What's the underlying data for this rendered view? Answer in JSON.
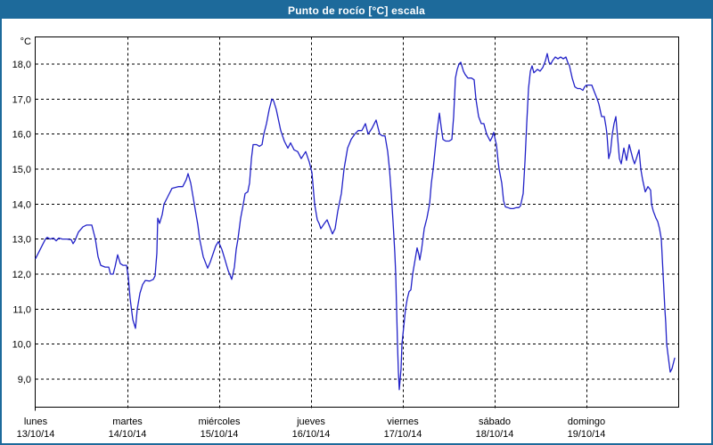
{
  "window": {
    "title": "Punto de rocío [°C] escala"
  },
  "colors": {
    "title_bar": "#1d6a9b",
    "frame": "#1d6a9b",
    "title_text": "#ffffff",
    "line": "#2222c8",
    "grid": "#000000",
    "plot_border": "#000000",
    "plot_bg": "#ffffff",
    "label_text": "#000000"
  },
  "chart_data": {
    "type": "line",
    "title": "Punto de rocío [°C] escala",
    "ylabel": "°C",
    "xlabel": "",
    "grid": true,
    "legend": "none",
    "x_unit": "days since 13/10/14 00:00",
    "xlim": [
      0,
      7
    ],
    "ylim": [
      8.2,
      18.8
    ],
    "y_unit_label": "°C",
    "y_ticks": [
      {
        "v": 18,
        "label": "18,0"
      },
      {
        "v": 17,
        "label": "17,0"
      },
      {
        "v": 16,
        "label": "16,0"
      },
      {
        "v": 15,
        "label": "15,0"
      },
      {
        "v": 14,
        "label": "14,0"
      },
      {
        "v": 13,
        "label": "13,0"
      },
      {
        "v": 12,
        "label": "12,0"
      },
      {
        "v": 11,
        "label": "11,0"
      },
      {
        "v": 10,
        "label": "10,0"
      },
      {
        "v": 9,
        "label": "9,0"
      }
    ],
    "x_ticks": [
      {
        "x": 0,
        "name": "lunes",
        "date": "13/10/14"
      },
      {
        "x": 1,
        "name": "martes",
        "date": "14/10/14"
      },
      {
        "x": 2,
        "name": "miércoles",
        "date": "15/10/14"
      },
      {
        "x": 3,
        "name": "jueves",
        "date": "16/10/14"
      },
      {
        "x": 4,
        "name": "viernes",
        "date": "17/10/14"
      },
      {
        "x": 5,
        "name": "sábado",
        "date": "18/10/14"
      },
      {
        "x": 6,
        "name": "domingo",
        "date": "19/10/14"
      }
    ],
    "series": [
      {
        "name": "Punto de rocío",
        "color": "#2222c8",
        "points": [
          [
            0.0,
            12.45
          ],
          [
            0.049,
            12.7
          ],
          [
            0.107,
            13.0
          ],
          [
            0.126,
            13.05
          ],
          [
            0.155,
            13.0
          ],
          [
            0.194,
            13.03
          ],
          [
            0.223,
            12.95
          ],
          [
            0.252,
            13.03
          ],
          [
            0.291,
            13.0
          ],
          [
            0.34,
            13.0
          ],
          [
            0.388,
            12.98
          ],
          [
            0.408,
            12.87
          ],
          [
            0.427,
            12.95
          ],
          [
            0.466,
            13.2
          ],
          [
            0.515,
            13.35
          ],
          [
            0.553,
            13.4
          ],
          [
            0.612,
            13.4
          ],
          [
            0.65,
            13.0
          ],
          [
            0.68,
            12.5
          ],
          [
            0.709,
            12.25
          ],
          [
            0.757,
            12.2
          ],
          [
            0.796,
            12.2
          ],
          [
            0.816,
            12.0
          ],
          [
            0.845,
            12.0
          ],
          [
            0.864,
            12.2
          ],
          [
            0.893,
            12.55
          ],
          [
            0.922,
            12.3
          ],
          [
            0.951,
            12.25
          ],
          [
            0.99,
            12.25
          ],
          [
            1.01,
            11.9
          ],
          [
            1.029,
            11.3
          ],
          [
            1.058,
            10.7
          ],
          [
            1.087,
            10.45
          ],
          [
            1.107,
            11.0
          ],
          [
            1.136,
            11.45
          ],
          [
            1.165,
            11.7
          ],
          [
            1.194,
            11.82
          ],
          [
            1.243,
            11.8
          ],
          [
            1.282,
            11.85
          ],
          [
            1.301,
            11.95
          ],
          [
            1.32,
            12.6
          ],
          [
            1.33,
            13.6
          ],
          [
            1.35,
            13.45
          ],
          [
            1.379,
            13.7
          ],
          [
            1.398,
            14.0
          ],
          [
            1.437,
            14.2
          ],
          [
            1.485,
            14.45
          ],
          [
            1.553,
            14.5
          ],
          [
            1.602,
            14.5
          ],
          [
            1.641,
            14.7
          ],
          [
            1.66,
            14.87
          ],
          [
            1.689,
            14.6
          ],
          [
            1.728,
            14.0
          ],
          [
            1.767,
            13.4
          ],
          [
            1.786,
            13.0
          ],
          [
            1.825,
            12.5
          ],
          [
            1.854,
            12.3
          ],
          [
            1.874,
            12.17
          ],
          [
            1.903,
            12.35
          ],
          [
            1.922,
            12.5
          ],
          [
            1.961,
            12.8
          ],
          [
            1.99,
            12.93
          ],
          [
            2.029,
            12.7
          ],
          [
            2.058,
            12.45
          ],
          [
            2.097,
            12.1
          ],
          [
            2.136,
            11.85
          ],
          [
            2.165,
            12.2
          ],
          [
            2.184,
            12.7
          ],
          [
            2.204,
            13.0
          ],
          [
            2.233,
            13.6
          ],
          [
            2.262,
            14.0
          ],
          [
            2.282,
            14.3
          ],
          [
            2.311,
            14.35
          ],
          [
            2.33,
            14.6
          ],
          [
            2.35,
            15.3
          ],
          [
            2.369,
            15.7
          ],
          [
            2.408,
            15.7
          ],
          [
            2.437,
            15.65
          ],
          [
            2.466,
            15.7
          ],
          [
            2.485,
            16.0
          ],
          [
            2.515,
            16.3
          ],
          [
            2.544,
            16.7
          ],
          [
            2.573,
            17.0
          ],
          [
            2.592,
            16.95
          ],
          [
            2.621,
            16.7
          ],
          [
            2.67,
            16.1
          ],
          [
            2.709,
            15.8
          ],
          [
            2.748,
            15.6
          ],
          [
            2.777,
            15.75
          ],
          [
            2.816,
            15.55
          ],
          [
            2.854,
            15.5
          ],
          [
            2.893,
            15.3
          ],
          [
            2.942,
            15.5
          ],
          [
            2.981,
            15.2
          ],
          [
            3.01,
            14.9
          ],
          [
            3.039,
            14.0
          ],
          [
            3.068,
            13.55
          ],
          [
            3.087,
            13.45
          ],
          [
            3.107,
            13.3
          ],
          [
            3.146,
            13.45
          ],
          [
            3.175,
            13.55
          ],
          [
            3.204,
            13.35
          ],
          [
            3.233,
            13.15
          ],
          [
            3.262,
            13.3
          ],
          [
            3.291,
            13.8
          ],
          [
            3.33,
            14.3
          ],
          [
            3.359,
            15.0
          ],
          [
            3.398,
            15.6
          ],
          [
            3.437,
            15.85
          ],
          [
            3.476,
            16.0
          ],
          [
            3.515,
            16.1
          ],
          [
            3.553,
            16.1
          ],
          [
            3.592,
            16.3
          ],
          [
            3.621,
            16.0
          ],
          [
            3.66,
            16.15
          ],
          [
            3.689,
            16.3
          ],
          [
            3.709,
            16.4
          ],
          [
            3.728,
            16.2
          ],
          [
            3.748,
            16.0
          ],
          [
            3.777,
            15.95
          ],
          [
            3.806,
            15.95
          ],
          [
            3.835,
            15.5
          ],
          [
            3.854,
            15.0
          ],
          [
            3.874,
            14.3
          ],
          [
            3.893,
            13.5
          ],
          [
            3.913,
            12.6
          ],
          [
            3.922,
            12.0
          ],
          [
            3.932,
            11.0
          ],
          [
            3.942,
            10.0
          ],
          [
            3.951,
            9.2
          ],
          [
            3.956,
            8.95
          ],
          [
            3.961,
            8.7
          ],
          [
            3.981,
            9.3
          ],
          [
            3.99,
            10.0
          ],
          [
            4.01,
            10.5
          ],
          [
            4.029,
            11.0
          ],
          [
            4.049,
            11.3
          ],
          [
            4.068,
            11.5
          ],
          [
            4.087,
            11.55
          ],
          [
            4.107,
            12.0
          ],
          [
            4.126,
            12.3
          ],
          [
            4.146,
            12.6
          ],
          [
            4.155,
            12.75
          ],
          [
            4.175,
            12.55
          ],
          [
            4.184,
            12.4
          ],
          [
            4.204,
            12.7
          ],
          [
            4.233,
            13.3
          ],
          [
            4.262,
            13.6
          ],
          [
            4.291,
            14.0
          ],
          [
            4.311,
            14.6
          ],
          [
            4.33,
            15.0
          ],
          [
            4.35,
            15.5
          ],
          [
            4.369,
            16.0
          ],
          [
            4.398,
            16.6
          ],
          [
            4.417,
            16.2
          ],
          [
            4.437,
            15.85
          ],
          [
            4.466,
            15.8
          ],
          [
            4.505,
            15.8
          ],
          [
            4.534,
            15.85
          ],
          [
            4.553,
            16.5
          ],
          [
            4.573,
            17.6
          ],
          [
            4.592,
            17.85
          ],
          [
            4.612,
            18.0
          ],
          [
            4.631,
            18.05
          ],
          [
            4.66,
            17.8
          ],
          [
            4.68,
            17.7
          ],
          [
            4.709,
            17.6
          ],
          [
            4.748,
            17.6
          ],
          [
            4.777,
            17.55
          ],
          [
            4.796,
            17.0
          ],
          [
            4.825,
            16.5
          ],
          [
            4.854,
            16.3
          ],
          [
            4.883,
            16.3
          ],
          [
            4.913,
            16.0
          ],
          [
            4.951,
            15.8
          ],
          [
            4.971,
            15.9
          ],
          [
            4.99,
            16.05
          ],
          [
            5.01,
            15.8
          ],
          [
            5.019,
            15.7
          ],
          [
            5.039,
            15.2
          ],
          [
            5.049,
            15.0
          ],
          [
            5.078,
            14.6
          ],
          [
            5.097,
            14.1
          ],
          [
            5.117,
            13.92
          ],
          [
            5.146,
            13.9
          ],
          [
            5.175,
            13.87
          ],
          [
            5.204,
            13.87
          ],
          [
            5.233,
            13.9
          ],
          [
            5.262,
            13.9
          ],
          [
            5.282,
            13.95
          ],
          [
            5.311,
            14.3
          ],
          [
            5.33,
            15.2
          ],
          [
            5.35,
            16.3
          ],
          [
            5.369,
            17.3
          ],
          [
            5.389,
            17.8
          ],
          [
            5.408,
            17.95
          ],
          [
            5.427,
            17.75
          ],
          [
            5.447,
            17.8
          ],
          [
            5.466,
            17.85
          ],
          [
            5.495,
            17.8
          ],
          [
            5.524,
            17.9
          ],
          [
            5.553,
            18.1
          ],
          [
            5.573,
            18.3
          ],
          [
            5.592,
            18.05
          ],
          [
            5.612,
            18.0
          ],
          [
            5.631,
            18.1
          ],
          [
            5.66,
            18.2
          ],
          [
            5.689,
            18.15
          ],
          [
            5.718,
            18.2
          ],
          [
            5.748,
            18.15
          ],
          [
            5.777,
            18.2
          ],
          [
            5.796,
            18.05
          ],
          [
            5.816,
            17.95
          ],
          [
            5.845,
            17.6
          ],
          [
            5.874,
            17.35
          ],
          [
            5.903,
            17.3
          ],
          [
            5.932,
            17.3
          ],
          [
            5.961,
            17.25
          ],
          [
            5.981,
            17.35
          ],
          [
            6.0,
            17.4
          ],
          [
            6.029,
            17.4
          ],
          [
            6.058,
            17.4
          ],
          [
            6.087,
            17.2
          ],
          [
            6.117,
            17.0
          ],
          [
            6.136,
            16.85
          ],
          [
            6.165,
            16.5
          ],
          [
            6.194,
            16.5
          ],
          [
            6.214,
            16.2
          ],
          [
            6.223,
            16.0
          ],
          [
            6.243,
            15.3
          ],
          [
            6.262,
            15.5
          ],
          [
            6.282,
            16.0
          ],
          [
            6.301,
            16.3
          ],
          [
            6.32,
            16.5
          ],
          [
            6.34,
            15.9
          ],
          [
            6.359,
            15.3
          ],
          [
            6.379,
            15.15
          ],
          [
            6.408,
            15.6
          ],
          [
            6.437,
            15.25
          ],
          [
            6.466,
            15.7
          ],
          [
            6.485,
            15.5
          ],
          [
            6.505,
            15.3
          ],
          [
            6.524,
            15.15
          ],
          [
            6.544,
            15.3
          ],
          [
            6.573,
            15.55
          ],
          [
            6.592,
            15.0
          ],
          [
            6.612,
            14.7
          ],
          [
            6.641,
            14.35
          ],
          [
            6.67,
            14.5
          ],
          [
            6.699,
            14.4
          ],
          [
            6.709,
            14.0
          ],
          [
            6.728,
            13.8
          ],
          [
            6.757,
            13.6
          ],
          [
            6.777,
            13.5
          ],
          [
            6.796,
            13.3
          ],
          [
            6.816,
            13.0
          ],
          [
            6.825,
            12.5
          ],
          [
            6.835,
            12.0
          ],
          [
            6.845,
            11.5
          ],
          [
            6.854,
            11.0
          ],
          [
            6.864,
            10.6
          ],
          [
            6.874,
            10.0
          ],
          [
            6.893,
            9.6
          ],
          [
            6.913,
            9.2
          ],
          [
            6.932,
            9.3
          ],
          [
            6.961,
            9.6
          ]
        ]
      }
    ]
  }
}
